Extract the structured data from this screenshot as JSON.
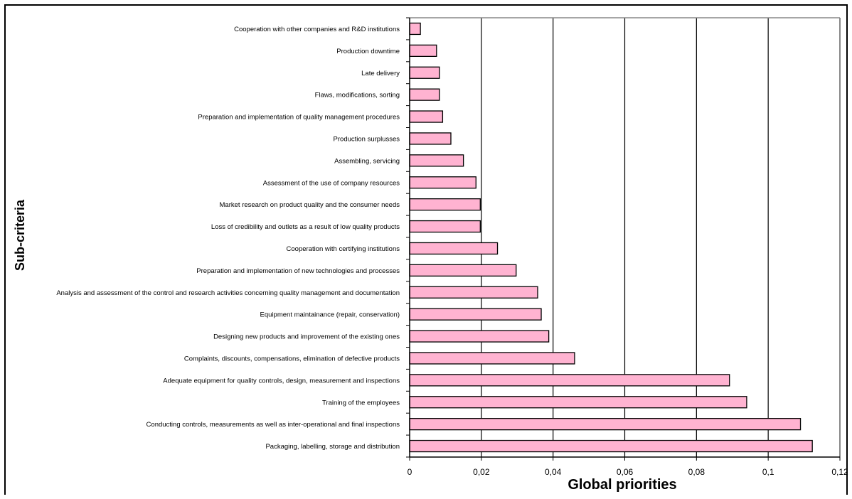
{
  "chart_data": {
    "type": "bar",
    "orientation": "horizontal",
    "xlabel": "Global priorities",
    "ylabel": "Sub-criteria",
    "xlim": [
      0,
      0.12
    ],
    "x_ticks": [
      "0",
      "0,02",
      "0,04",
      "0,06",
      "0,08",
      "0,1",
      "0,12"
    ],
    "grid": "vertical",
    "bar_color": "#ffb3d1",
    "categories": [
      "Cooperation with other companies and R&D institutions",
      "Production downtime",
      "Late delivery",
      "Flaws, modifications, sorting",
      "Preparation and implementation of quality management procedures",
      "Production surplusses",
      "Assembling, servicing",
      "Assessment of the use of company resources",
      "Market research on product quality and the consumer needs",
      "Loss of credibility and outlets as a result of low quality products",
      "Cooperation with certifying institutions",
      "Preparation and implementation of new technologies and processes",
      "Analysis and assessment of the control and research activities concerning quality management and documentation",
      "Equipment maintainance (repair, conservation)",
      "Designing new products and improvement of the existing ones",
      "Complaints, discounts, compensations, elimination of defective products",
      "Adequate equipment for quality controls, design, measurement and inspections",
      "Training of the employees",
      "Conducting controls, measurements as well as inter-operational and final inspections",
      "Packaging, labelling, storage and distribution"
    ],
    "values": [
      0.003,
      0.0075,
      0.0083,
      0.0083,
      0.0092,
      0.0115,
      0.015,
      0.0185,
      0.0197,
      0.0197,
      0.0245,
      0.0297,
      0.0357,
      0.0367,
      0.0388,
      0.046,
      0.0892,
      0.094,
      0.109,
      0.1123
    ]
  }
}
